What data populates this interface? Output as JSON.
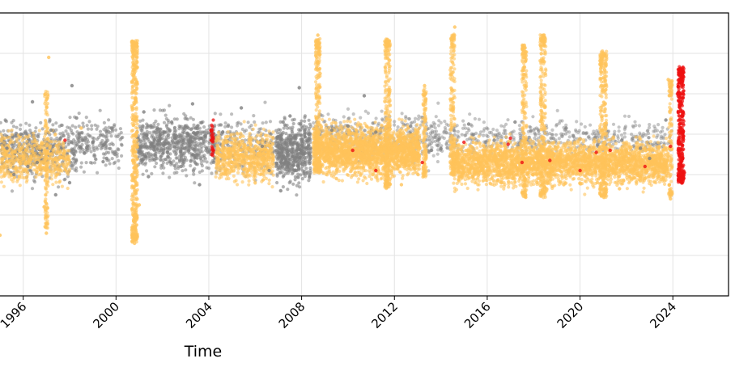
{
  "chart_data": {
    "type": "scatter",
    "xlabel": "Time",
    "ylabel": "",
    "xlim": [
      1995.0,
      2026.4
    ],
    "ylim": [
      -7.0,
      7.0
    ],
    "grid": true,
    "x_ticks": [
      1996,
      2000,
      2004,
      2008,
      2012,
      2016,
      2020,
      2024
    ],
    "x_tick_labels": [
      "1996",
      "2000",
      "2004",
      "2008",
      "2012",
      "2016",
      "2020",
      "2024"
    ],
    "y_gridlines": [
      -5,
      -3,
      -1,
      1,
      3,
      5
    ],
    "y_tick_labels": [],
    "colors": {
      "gray": "#808080",
      "orange": "#FFC35A",
      "red": "#EE1111"
    },
    "series": [
      {
        "color": "#808080",
        "points": [
          [
            1995.3,
            0.3
          ],
          [
            1995.6,
            -1.0
          ],
          [
            1995.9,
            1.0
          ],
          [
            1996.2,
            -0.6
          ],
          [
            1996.4,
            2.6
          ],
          [
            1996.6,
            -0.4
          ],
          [
            1997.2,
            1.2
          ],
          [
            1997.4,
            -2.0
          ],
          [
            1997.6,
            0.8
          ],
          [
            1998.0,
            -1.4
          ],
          [
            1998.1,
            3.4
          ],
          [
            1998.3,
            1.8
          ],
          [
            1999.0,
            0.6
          ],
          [
            1999.6,
            -0.2
          ],
          [
            1999.8,
            1.3
          ],
          [
            2001.2,
            2.1
          ],
          [
            2001.4,
            -1.1
          ],
          [
            2001.8,
            0.5
          ],
          [
            2002.4,
            1.6
          ],
          [
            2002.8,
            -0.6
          ],
          [
            2003.3,
            2.5
          ],
          [
            2003.6,
            -1.5
          ],
          [
            2003.9,
            0.3
          ],
          [
            2004.6,
            1.1
          ],
          [
            2005.4,
            2.3
          ],
          [
            2006.3,
            0.4
          ],
          [
            2006.6,
            -0.8
          ],
          [
            2007.1,
            -1.8
          ],
          [
            2007.2,
            1.6
          ],
          [
            2007.5,
            1.9
          ],
          [
            2007.7,
            -0.8
          ],
          [
            2007.9,
            3.3
          ],
          [
            2008.3,
            1.0
          ],
          [
            2009.3,
            1.2
          ],
          [
            2010.0,
            1.4
          ],
          [
            2010.7,
            2.9
          ],
          [
            2011.2,
            1.1
          ],
          [
            2012.7,
            1.4
          ],
          [
            2013.6,
            0.2
          ],
          [
            2014.0,
            0.3
          ],
          [
            2015.2,
            1.5
          ],
          [
            2016.3,
            0.7
          ],
          [
            2017.2,
            1.6
          ],
          [
            2019.4,
            1.3
          ],
          [
            2021.8,
            0.7
          ],
          [
            2022.6,
            0.3
          ],
          [
            2023.0,
            -0.2
          ],
          [
            2023.7,
            1.7
          ]
        ]
      },
      {
        "color": "#FFC35A",
        "points": [
          [
            1995.0,
            -4.0
          ],
          [
            1995.2,
            0.8
          ],
          [
            1996.9,
            -2.6
          ],
          [
            1997.0,
            -3.9
          ],
          [
            1997.0,
            2.7
          ],
          [
            1997.1,
            4.8
          ],
          [
            1998.5,
            1.3
          ],
          [
            2000.7,
            5.6
          ],
          [
            2000.8,
            -4.4
          ],
          [
            2000.9,
            4.3
          ],
          [
            2001.0,
            -2.5
          ],
          [
            2004.7,
            -0.8
          ],
          [
            2005.8,
            0.5
          ],
          [
            2008.7,
            5.9
          ],
          [
            2008.8,
            4.0
          ],
          [
            2009.5,
            -1.2
          ],
          [
            2010.3,
            -0.4
          ],
          [
            2011.7,
            5.6
          ],
          [
            2011.8,
            3.2
          ],
          [
            2012.3,
            -1.5
          ],
          [
            2013.3,
            3.4
          ],
          [
            2014.5,
            5.8
          ],
          [
            2014.6,
            6.3
          ],
          [
            2015.4,
            0.6
          ],
          [
            2016.6,
            -1.4
          ],
          [
            2017.6,
            5.4
          ],
          [
            2018.4,
            5.8
          ],
          [
            2018.5,
            4.0
          ],
          [
            2019.3,
            -1.5
          ],
          [
            2020.2,
            0.4
          ],
          [
            2020.9,
            4.7
          ],
          [
            2021.0,
            5.0
          ],
          [
            2021.7,
            -1.7
          ],
          [
            2022.4,
            -0.5
          ],
          [
            2023.8,
            3.7
          ],
          [
            2023.9,
            -2.2
          ]
        ]
      },
      {
        "color": "#EE1111",
        "points": [
          [
            1997.8,
            0.7
          ],
          [
            2004.1,
            1.2
          ],
          [
            2004.2,
            0.2
          ],
          [
            2010.2,
            0.2
          ],
          [
            2011.2,
            -0.8
          ],
          [
            2013.2,
            -0.4
          ],
          [
            2015.0,
            0.6
          ],
          [
            2016.9,
            0.5
          ],
          [
            2017.0,
            0.8
          ],
          [
            2017.5,
            -0.4
          ],
          [
            2018.7,
            -0.3
          ],
          [
            2020.0,
            -0.8
          ],
          [
            2020.7,
            0.1
          ],
          [
            2021.3,
            0.2
          ],
          [
            2022.8,
            -0.6
          ],
          [
            2023.9,
            0.4
          ],
          [
            2024.2,
            3.0
          ],
          [
            2024.3,
            1.2
          ],
          [
            2024.3,
            0.0
          ],
          [
            2024.4,
            -0.8
          ],
          [
            2024.5,
            -0.9
          ],
          [
            2024.4,
            1.9
          ],
          [
            2024.3,
            0.6
          ],
          [
            2024.4,
            -0.2
          ]
        ]
      }
    ]
  }
}
